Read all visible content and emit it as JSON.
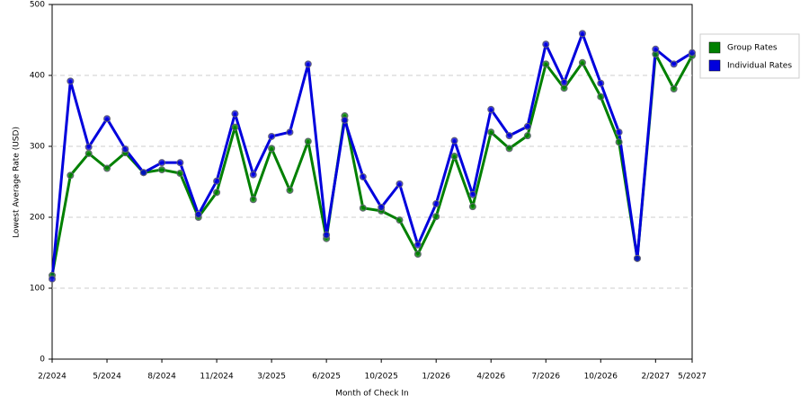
{
  "chart_data": {
    "type": "line",
    "x_label": "Month of Check In",
    "y_label": "Lowest Average Rate (USD)",
    "categories": [
      "2/2024",
      null,
      null,
      "5/2024",
      null,
      null,
      "8/2024",
      null,
      null,
      "11/2024",
      null,
      null,
      "3/2025",
      null,
      null,
      "6/2025",
      null,
      null,
      "10/2025",
      null,
      null,
      "1/2026",
      null,
      null,
      "4/2026",
      null,
      null,
      "7/2026",
      null,
      null,
      "10/2026",
      null,
      null,
      "2/2027",
      null,
      "5/2027"
    ],
    "series": [
      {
        "name": "Group Rates",
        "color": "#008000",
        "values": [
          118,
          259,
          290,
          269,
          291,
          263,
          267,
          262,
          200,
          235,
          327,
          225,
          297,
          238,
          307,
          170,
          343,
          213,
          209,
          196,
          148,
          201,
          286,
          215,
          320,
          297,
          315,
          416,
          382,
          418,
          370,
          306,
          142,
          430,
          381,
          428
        ]
      },
      {
        "name": "Individual Rates",
        "color": "#0000dd",
        "values": [
          113,
          392,
          299,
          339,
          296,
          263,
          277,
          277,
          204,
          251,
          346,
          260,
          314,
          320,
          416,
          175,
          337,
          257,
          214,
          247,
          161,
          219,
          308,
          232,
          352,
          315,
          328,
          444,
          390,
          459,
          389,
          320,
          142,
          437,
          416,
          432
        ]
      }
    ],
    "ylim": [
      0,
      500
    ],
    "yticks": [
      0,
      100,
      200,
      300,
      400,
      500
    ],
    "grid": true,
    "legend": "right"
  }
}
